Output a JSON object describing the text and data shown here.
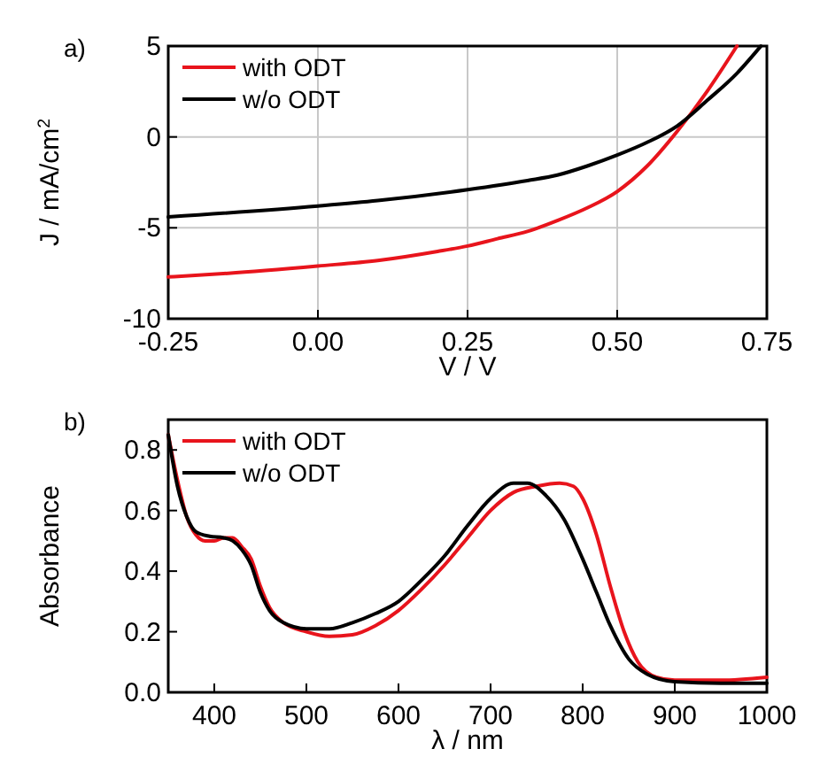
{
  "chart_data": [
    {
      "type": "line",
      "title": "a)",
      "xlabel": "V / V",
      "ylabel": "J / mA/cm$^{2}$",
      "xlim": [
        -0.25,
        0.75
      ],
      "xticks": [
        {
          "value": -0.25,
          "label": "-0.25"
        },
        {
          "value": 0,
          "label": "0.00"
        },
        {
          "value": 0.25,
          "label": "0.25"
        },
        {
          "value": 0.5,
          "label": "0.50"
        },
        {
          "value": 0.75,
          "label": "0.75"
        }
      ],
      "ylim": [
        -10,
        5
      ],
      "yticks": [
        -10,
        -5,
        0,
        5
      ],
      "grid": true,
      "legend": "top left",
      "x": [
        -0.25,
        -0.15,
        0,
        0.1,
        0.2,
        0.25,
        0.3,
        0.35,
        0.4,
        0.45,
        0.5,
        0.55,
        0.6,
        0.65,
        0.7
      ],
      "series": [
        {
          "name": "with ODT",
          "color": "#e8141c",
          "values": [
            -7.7,
            -7.5,
            -7.1,
            -6.8,
            -6.3,
            -6.0,
            -5.6,
            -5.2,
            -4.6,
            -3.9,
            -3.0,
            -1.6,
            0.3,
            2.5,
            5
          ]
        },
        {
          "name": "w/o ODT",
          "color": "#000000",
          "x": [
            -0.25,
            0,
            0.1,
            0.25,
            0.35,
            0.4,
            0.45,
            0.5,
            0.55,
            0.6,
            0.65,
            0.7,
            0.74
          ],
          "values": [
            -4.4,
            -3.8,
            -3.5,
            -2.9,
            -2.4,
            -2.1,
            -1.6,
            -1.0,
            -0.3,
            0.6,
            2.0,
            3.5,
            5
          ]
        }
      ]
    },
    {
      "type": "line",
      "title": "b)",
      "xlabel": "λ / nm",
      "ylabel": "Absorbance",
      "xlim": [
        350,
        1000
      ],
      "xticks": [
        400,
        500,
        600,
        700,
        800,
        900,
        1000
      ],
      "ylim": [
        0,
        0.9
      ],
      "yticks": [
        {
          "value": 0,
          "label": "0.0"
        },
        0.2,
        0.4,
        0.6,
        0.8
      ],
      "legend": "top left",
      "series": [
        {
          "name": "with ODT",
          "color": "#e8141c",
          "x": [
            350,
            360,
            370,
            380,
            390,
            400,
            410,
            420,
            430,
            440,
            450,
            460,
            475,
            500,
            525,
            550,
            575,
            600,
            625,
            650,
            675,
            700,
            725,
            750,
            775,
            790,
            800,
            815,
            830,
            845,
            860,
            880,
            900,
            950,
            1000
          ],
          "values": [
            0.85,
            0.7,
            0.58,
            0.52,
            0.5,
            0.5,
            0.51,
            0.51,
            0.48,
            0.44,
            0.35,
            0.28,
            0.23,
            0.2,
            0.185,
            0.19,
            0.22,
            0.27,
            0.34,
            0.42,
            0.51,
            0.6,
            0.66,
            0.68,
            0.69,
            0.68,
            0.64,
            0.52,
            0.35,
            0.2,
            0.1,
            0.05,
            0.04,
            0.04,
            0.05
          ]
        },
        {
          "name": "w/o ODT",
          "color": "#000000",
          "x": [
            350,
            360,
            370,
            380,
            395,
            410,
            420,
            430,
            440,
            450,
            460,
            475,
            500,
            525,
            550,
            575,
            600,
            625,
            650,
            675,
            700,
            725,
            740,
            760,
            780,
            800,
            815,
            830,
            850,
            870,
            900,
            950,
            1000
          ],
          "values": [
            0.85,
            0.68,
            0.58,
            0.53,
            0.515,
            0.51,
            0.5,
            0.47,
            0.42,
            0.33,
            0.27,
            0.23,
            0.21,
            0.21,
            0.23,
            0.26,
            0.3,
            0.37,
            0.45,
            0.55,
            0.64,
            0.69,
            0.69,
            0.65,
            0.57,
            0.44,
            0.33,
            0.22,
            0.11,
            0.06,
            0.035,
            0.03,
            0.03
          ]
        }
      ]
    }
  ]
}
